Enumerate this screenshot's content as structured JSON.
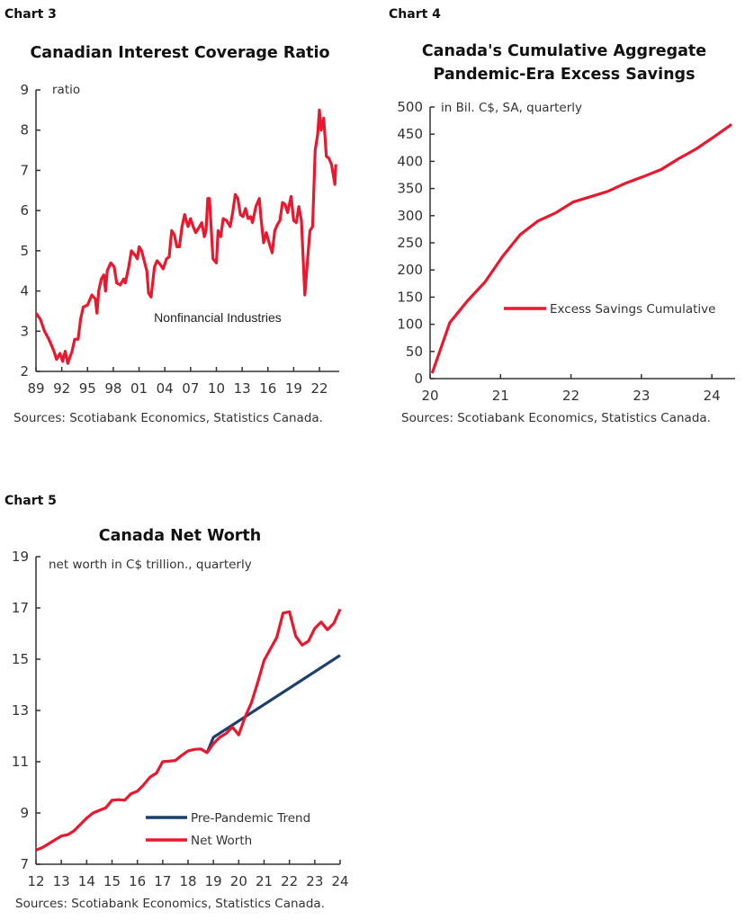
{
  "colors": {
    "red": "#e8182e",
    "navy": "#1c3f6e",
    "axis": "#333333"
  },
  "chart_data": [
    {
      "id": "chart3",
      "label": "Chart 3",
      "type": "line",
      "title": "Canadian Interest Coverage Ratio",
      "unit_label": "ratio",
      "source": "Sources: Scotiabank Economics, Statistics Canada.",
      "xlim": [
        1989,
        2024.3
      ],
      "ylim": [
        2,
        9
      ],
      "x_ticks": [
        1989,
        1992,
        1995,
        1998,
        2001,
        2004,
        2007,
        2010,
        2013,
        2016,
        2019,
        2022
      ],
      "x_tick_labels": [
        "89",
        "92",
        "95",
        "98",
        "01",
        "04",
        "07",
        "10",
        "13",
        "16",
        "19",
        "22"
      ],
      "y_ticks": [
        2,
        3,
        4,
        5,
        6,
        7,
        8,
        9
      ],
      "y_tick_labels": [
        "2",
        "3",
        "4",
        "5",
        "6",
        "7",
        "8",
        "9"
      ],
      "grid": false,
      "annotation": "Nonfinancial Industries",
      "series": [
        {
          "name": "Nonfinancial Industries",
          "color": "#e8182e",
          "x": [
            1989.0,
            1989.5,
            1990.0,
            1990.5,
            1991.1,
            1991.4,
            1991.8,
            1992.1,
            1992.4,
            1992.7,
            1993.2,
            1993.5,
            1993.9,
            1994.2,
            1994.5,
            1995.0,
            1995.5,
            1995.9,
            1996.1,
            1996.3,
            1996.6,
            1996.9,
            1997.1,
            1997.3,
            1997.7,
            1998.1,
            1998.4,
            1998.8,
            1999.2,
            1999.4,
            1999.8,
            2000.1,
            2000.5,
            2000.8,
            2001.0,
            2001.3,
            2001.9,
            2002.1,
            2002.4,
            2002.8,
            2003.1,
            2003.5,
            2003.8,
            2004.2,
            2004.5,
            2004.8,
            2005.1,
            2005.4,
            2005.7,
            2006.0,
            2006.3,
            2006.7,
            2007.0,
            2007.3,
            2007.6,
            2007.9,
            2008.3,
            2008.6,
            2008.8,
            2009.0,
            2009.2,
            2009.6,
            2010.0,
            2010.2,
            2010.5,
            2010.8,
            2011.2,
            2011.6,
            2011.9,
            2012.2,
            2012.5,
            2012.8,
            2013.1,
            2013.4,
            2013.7,
            2014.0,
            2014.2,
            2014.6,
            2015.0,
            2015.2,
            2015.5,
            2015.8,
            2016.2,
            2016.5,
            2016.8,
            2017.1,
            2017.4,
            2017.7,
            2018.0,
            2018.3,
            2018.7,
            2019.0,
            2019.3,
            2019.6,
            2019.9,
            2020.3,
            2020.7,
            2020.9,
            2021.2,
            2021.5,
            2021.8,
            2022.0,
            2022.2,
            2022.5,
            2022.8,
            2023.1,
            2023.4,
            2023.6,
            2023.8,
            2023.9
          ],
          "y": [
            3.45,
            3.3,
            3.0,
            2.8,
            2.5,
            2.3,
            2.45,
            2.25,
            2.5,
            2.2,
            2.5,
            2.8,
            2.8,
            3.3,
            3.6,
            3.65,
            3.9,
            3.8,
            3.45,
            4.0,
            4.3,
            4.4,
            4.0,
            4.5,
            4.7,
            4.6,
            4.2,
            4.15,
            4.3,
            4.2,
            4.6,
            5.0,
            4.9,
            4.8,
            5.1,
            5.0,
            4.5,
            3.95,
            3.85,
            4.6,
            4.75,
            4.65,
            4.55,
            4.8,
            4.85,
            5.5,
            5.4,
            5.1,
            5.1,
            5.6,
            5.9,
            5.6,
            5.8,
            5.6,
            5.45,
            5.55,
            5.7,
            5.35,
            5.5,
            6.3,
            6.3,
            4.8,
            4.7,
            5.5,
            5.35,
            5.8,
            5.75,
            5.6,
            5.95,
            6.4,
            6.3,
            5.9,
            5.85,
            6.05,
            5.8,
            5.85,
            5.7,
            6.1,
            6.3,
            5.8,
            5.2,
            5.45,
            5.15,
            4.95,
            5.5,
            5.65,
            5.75,
            6.2,
            6.15,
            5.95,
            6.35,
            5.75,
            5.7,
            6.1,
            5.75,
            3.9,
            5.0,
            5.5,
            5.6,
            7.5,
            7.9,
            8.5,
            8.0,
            8.3,
            7.35,
            7.3,
            7.15,
            6.9,
            6.65,
            7.15
          ]
        }
      ]
    },
    {
      "id": "chart4",
      "label": "Chart 4",
      "type": "line",
      "title": [
        "Canada's Cumulative Aggregate",
        "Pandemic-Era Excess Savings"
      ],
      "unit_label": "in Bil. C$, SA, quarterly",
      "source": "Sources: Scotiabank Economics, Statistics Canada.",
      "xlim": [
        2020,
        2024.33
      ],
      "ylim": [
        0,
        500
      ],
      "x_ticks": [
        2020,
        2021,
        2022,
        2023,
        2024
      ],
      "x_tick_labels": [
        "20",
        "21",
        "22",
        "23",
        "24"
      ],
      "y_ticks": [
        0,
        50,
        100,
        150,
        200,
        250,
        300,
        350,
        400,
        450,
        500
      ],
      "y_tick_labels": [
        "0",
        "50",
        "100",
        "150",
        "200",
        "250",
        "300",
        "350",
        "400",
        "450",
        "500"
      ],
      "grid": false,
      "legend_placement": "middle-right",
      "series": [
        {
          "name": "Excess Savings Cumulative",
          "color": "#e8182e",
          "x": [
            2020.03,
            2020.28,
            2020.53,
            2020.78,
            2021.03,
            2021.28,
            2021.53,
            2021.78,
            2022.03,
            2022.28,
            2022.53,
            2022.78,
            2023.03,
            2023.28,
            2023.53,
            2023.78,
            2024.03,
            2024.28
          ],
          "y": [
            10,
            103,
            143,
            178,
            225,
            265,
            290,
            305,
            325,
            335,
            345,
            360,
            372,
            385,
            405,
            423,
            445,
            468
          ]
        }
      ]
    },
    {
      "id": "chart5",
      "label": "Chart 5",
      "type": "line",
      "title": "Canada Net Worth",
      "unit_label": "net worth in C$ trillion., quarterly",
      "source": "Sources: Scotiabank Economics, Statistics Canada.",
      "xlim": [
        2012,
        2024
      ],
      "ylim": [
        7,
        19
      ],
      "x_ticks": [
        2012,
        2013,
        2014,
        2015,
        2016,
        2017,
        2018,
        2019,
        2020,
        2021,
        2022,
        2023,
        2024
      ],
      "x_tick_labels": [
        "12",
        "13",
        "14",
        "15",
        "16",
        "17",
        "18",
        "19",
        "20",
        "21",
        "22",
        "23",
        "24"
      ],
      "y_ticks": [
        7,
        9,
        11,
        13,
        15,
        17,
        19
      ],
      "y_tick_labels": [
        "7",
        "9",
        "11",
        "13",
        "15",
        "17",
        "19"
      ],
      "grid": false,
      "legend_placement": "bottom-right",
      "series": [
        {
          "name": "Pre-Pandemic Trend",
          "color": "#1c3f6e",
          "x": [
            2018.75,
            2019.0,
            2024.0
          ],
          "y": [
            11.35,
            11.95,
            15.15
          ]
        },
        {
          "name": "Net Worth",
          "color": "#e8182e",
          "x": [
            2012.0,
            2012.25,
            2012.5,
            2012.75,
            2013.0,
            2013.25,
            2013.5,
            2013.75,
            2014.0,
            2014.25,
            2014.5,
            2014.75,
            2015.0,
            2015.25,
            2015.5,
            2015.75,
            2016.0,
            2016.25,
            2016.5,
            2016.75,
            2017.0,
            2017.25,
            2017.5,
            2017.75,
            2018.0,
            2018.25,
            2018.5,
            2018.75,
            2019.0,
            2019.25,
            2019.5,
            2019.75,
            2020.0,
            2020.25,
            2020.5,
            2020.75,
            2021.0,
            2021.25,
            2021.5,
            2021.75,
            2022.0,
            2022.25,
            2022.5,
            2022.75,
            2023.0,
            2023.25,
            2023.5,
            2023.75,
            2024.0
          ],
          "y": [
            7.55,
            7.65,
            7.8,
            7.95,
            8.1,
            8.15,
            8.3,
            8.55,
            8.8,
            9.0,
            9.1,
            9.2,
            9.5,
            9.52,
            9.5,
            9.75,
            9.85,
            10.1,
            10.4,
            10.55,
            11.0,
            11.02,
            11.05,
            11.25,
            11.42,
            11.48,
            11.5,
            11.35,
            11.7,
            11.95,
            12.1,
            12.35,
            12.05,
            12.75,
            13.3,
            14.1,
            14.95,
            15.4,
            15.85,
            16.8,
            16.85,
            15.9,
            15.55,
            15.7,
            16.2,
            16.45,
            16.15,
            16.4,
            16.95
          ]
        }
      ]
    }
  ]
}
